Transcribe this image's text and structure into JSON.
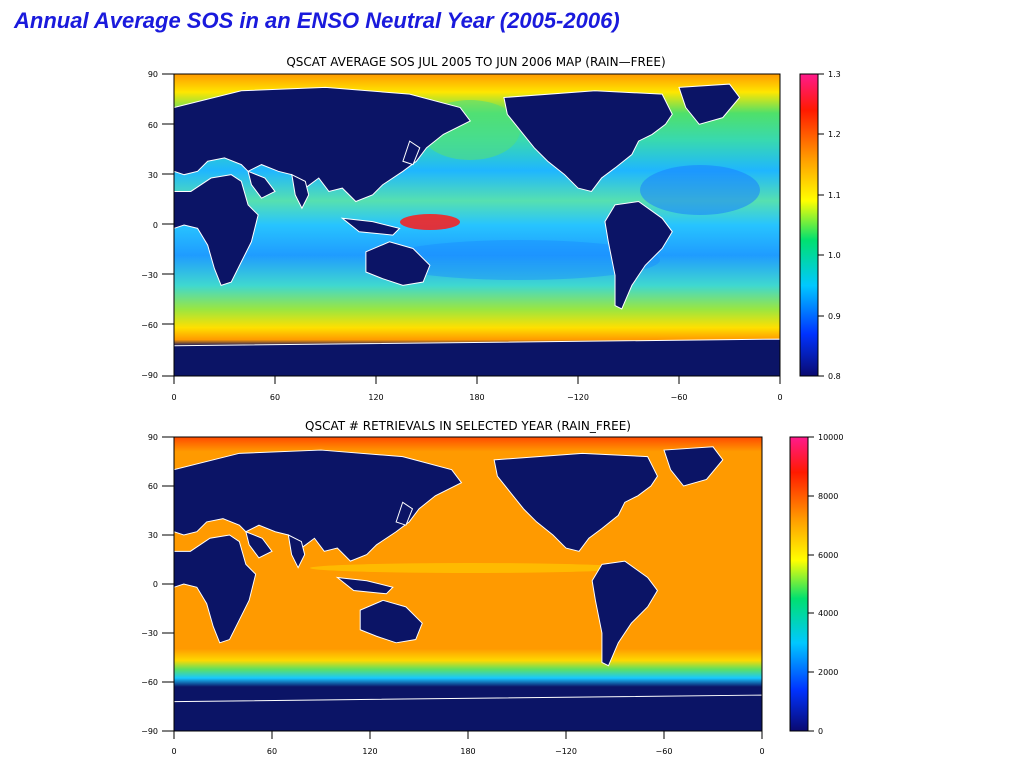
{
  "slide": {
    "title": "Annual Average SOS in an ENSO Neutral Year (2005-2006)"
  },
  "panels": [
    {
      "title": "QSCAT AVERAGE SOS JUL 2005 TO JUN 2006 MAP (RAIN—FREE)",
      "lat_ticks": [
        "90",
        "60",
        "30",
        "0",
        "−30",
        "−60",
        "−90"
      ],
      "lon_ticks": [
        "0",
        "60",
        "120",
        "180",
        "−120",
        "−60",
        "0"
      ],
      "colorbar": {
        "min": 0.8,
        "max": 1.3,
        "ticks": [
          "1.3",
          "1.2",
          "1.1",
          "1.0",
          "0.9",
          "0.8"
        ]
      }
    },
    {
      "title": "QSCAT # RETRIEVALS IN SELECTED YEAR (RAIN_FREE)",
      "lat_ticks": [
        "90",
        "60",
        "30",
        "0",
        "−30",
        "−60",
        "−90"
      ],
      "lon_ticks": [
        "0",
        "60",
        "120",
        "180",
        "−120",
        "−60",
        "0"
      ],
      "colorbar": {
        "min": 0,
        "max": 10000,
        "ticks": [
          "10000",
          "8000",
          "6000",
          "4000",
          "2000",
          "0"
        ]
      }
    }
  ],
  "colors": {
    "title": "#1a1adc",
    "land": "#0b1466",
    "coastline": "#ffffff",
    "colorscale": [
      "#0a0a70",
      "#0033ff",
      "#00c8ff",
      "#00e070",
      "#ffff00",
      "#ff9c00",
      "#ff1a00",
      "#ff1a8c"
    ]
  }
}
